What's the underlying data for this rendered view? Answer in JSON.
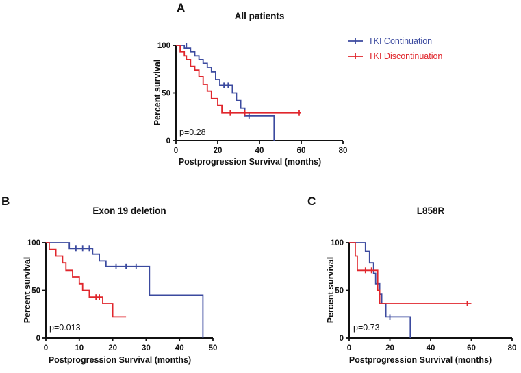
{
  "legend": {
    "entries": [
      {
        "label": "TKI Continuation",
        "color": "#3B4A9F"
      },
      {
        "label": "TKI Discontinuation",
        "color": "#E0262C"
      }
    ]
  },
  "chart_data": [
    {
      "type": "line",
      "subtype": "kaplan-meier-step",
      "panel_label": "A",
      "title": "All patients",
      "pvalue": "p=0.28",
      "xlabel": "Postprogression Survival (months)",
      "ylabel": "Percent survival",
      "xlim": [
        0,
        80
      ],
      "xticks": [
        0,
        20,
        40,
        60,
        80
      ],
      "ylim": [
        0,
        100
      ],
      "yticks": [
        0,
        50,
        100
      ],
      "legend_position": "outside-right",
      "grid": false,
      "series": [
        {
          "name": "TKI Continuation",
          "color": "#3B4A9F",
          "points": [
            [
              0,
              100
            ],
            [
              4,
              100
            ],
            [
              4,
              97
            ],
            [
              7,
              97
            ],
            [
              7,
              93
            ],
            [
              9,
              93
            ],
            [
              9,
              89
            ],
            [
              11,
              89
            ],
            [
              11,
              85
            ],
            [
              13,
              85
            ],
            [
              13,
              81
            ],
            [
              15,
              81
            ],
            [
              15,
              77
            ],
            [
              17,
              77
            ],
            [
              17,
              72
            ],
            [
              19,
              72
            ],
            [
              19,
              64
            ],
            [
              21,
              64
            ],
            [
              21,
              58
            ],
            [
              27,
              58
            ],
            [
              27,
              50
            ],
            [
              29,
              50
            ],
            [
              29,
              42
            ],
            [
              31,
              42
            ],
            [
              31,
              34
            ],
            [
              33,
              34
            ],
            [
              33,
              26
            ],
            [
              47,
              26
            ],
            [
              47,
              0
            ]
          ],
          "censors": [
            [
              5,
              100
            ],
            [
              23,
              58
            ],
            [
              25,
              58
            ],
            [
              35,
              26
            ]
          ]
        },
        {
          "name": "TKI Discontinuation",
          "color": "#E0262C",
          "points": [
            [
              0,
              100
            ],
            [
              2,
              100
            ],
            [
              2,
              93
            ],
            [
              4,
              93
            ],
            [
              4,
              89
            ],
            [
              5,
              89
            ],
            [
              5,
              85
            ],
            [
              7,
              85
            ],
            [
              7,
              78
            ],
            [
              9,
              78
            ],
            [
              9,
              74
            ],
            [
              11,
              74
            ],
            [
              11,
              67
            ],
            [
              13,
              67
            ],
            [
              13,
              59
            ],
            [
              15,
              59
            ],
            [
              15,
              52
            ],
            [
              17,
              52
            ],
            [
              17,
              44
            ],
            [
              20,
              44
            ],
            [
              20,
              37
            ],
            [
              22,
              37
            ],
            [
              22,
              29
            ],
            [
              60,
              29
            ]
          ],
          "censors": [
            [
              26,
              29
            ],
            [
              33,
              29
            ],
            [
              59,
              29
            ]
          ]
        }
      ]
    },
    {
      "type": "line",
      "subtype": "kaplan-meier-step",
      "panel_label": "B",
      "title": "Exon 19 deletion",
      "pvalue": "p=0.013",
      "xlabel": "Postprogression Survival (months)",
      "ylabel": "Percent survival",
      "xlim": [
        0,
        50
      ],
      "xticks": [
        0,
        10,
        20,
        30,
        40,
        50
      ],
      "ylim": [
        0,
        100
      ],
      "yticks": [
        0,
        50,
        100
      ],
      "grid": false,
      "series": [
        {
          "name": "TKI Continuation",
          "color": "#3B4A9F",
          "points": [
            [
              0,
              100
            ],
            [
              7,
              100
            ],
            [
              7,
              94
            ],
            [
              14,
              94
            ],
            [
              14,
              88
            ],
            [
              16,
              88
            ],
            [
              16,
              81
            ],
            [
              18,
              81
            ],
            [
              18,
              75
            ],
            [
              31,
              75
            ],
            [
              31,
              45
            ],
            [
              47,
              45
            ],
            [
              47,
              0
            ]
          ],
          "censors": [
            [
              9,
              94
            ],
            [
              11,
              94
            ],
            [
              13,
              94
            ],
            [
              21,
              75
            ],
            [
              24,
              75
            ],
            [
              27,
              75
            ]
          ]
        },
        {
          "name": "TKI Discontinuation",
          "color": "#E0262C",
          "points": [
            [
              0,
              100
            ],
            [
              1,
              100
            ],
            [
              1,
              93
            ],
            [
              3,
              93
            ],
            [
              3,
              86
            ],
            [
              5,
              86
            ],
            [
              5,
              79
            ],
            [
              6,
              79
            ],
            [
              6,
              71
            ],
            [
              8,
              71
            ],
            [
              8,
              64
            ],
            [
              10,
              64
            ],
            [
              10,
              57
            ],
            [
              11,
              57
            ],
            [
              11,
              50
            ],
            [
              13,
              50
            ],
            [
              13,
              43
            ],
            [
              17,
              43
            ],
            [
              17,
              36
            ],
            [
              20,
              36
            ],
            [
              20,
              22
            ],
            [
              24,
              22
            ]
          ],
          "censors": [
            [
              15,
              43
            ],
            [
              16,
              43
            ]
          ]
        }
      ]
    },
    {
      "type": "line",
      "subtype": "kaplan-meier-step",
      "panel_label": "C",
      "title": "L858R",
      "pvalue": "p=0.73",
      "xlabel": "Postprogression Survival (months)",
      "ylabel": "Percent survival",
      "xlim": [
        0,
        80
      ],
      "xticks": [
        0,
        20,
        40,
        60,
        80
      ],
      "ylim": [
        0,
        100
      ],
      "yticks": [
        0,
        50,
        100
      ],
      "grid": false,
      "series": [
        {
          "name": "TKI Continuation",
          "color": "#3B4A9F",
          "points": [
            [
              0,
              100
            ],
            [
              8,
              100
            ],
            [
              8,
              91
            ],
            [
              10,
              91
            ],
            [
              10,
              79
            ],
            [
              12,
              79
            ],
            [
              12,
              68
            ],
            [
              13,
              68
            ],
            [
              13,
              57
            ],
            [
              15,
              57
            ],
            [
              15,
              46
            ],
            [
              16,
              46
            ],
            [
              16,
              36
            ],
            [
              18,
              36
            ],
            [
              18,
              22
            ],
            [
              30,
              22
            ],
            [
              30,
              0
            ]
          ],
          "censors": [
            [
              20,
              22
            ]
          ]
        },
        {
          "name": "TKI Discontinuation",
          "color": "#E0262C",
          "points": [
            [
              0,
              100
            ],
            [
              3,
              100
            ],
            [
              3,
              86
            ],
            [
              4,
              86
            ],
            [
              4,
              71
            ],
            [
              14,
              71
            ],
            [
              14,
              50
            ],
            [
              15,
              50
            ],
            [
              15,
              36
            ],
            [
              60,
              36
            ]
          ],
          "censors": [
            [
              8,
              71
            ],
            [
              11,
              71
            ],
            [
              58,
              36
            ]
          ]
        }
      ]
    }
  ]
}
